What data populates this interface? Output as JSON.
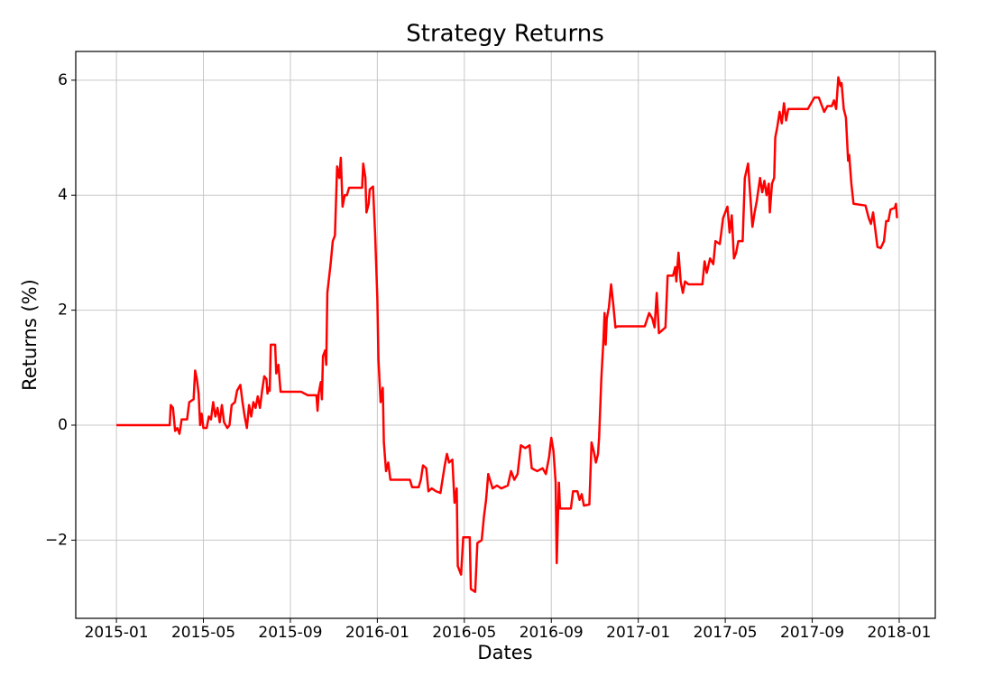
{
  "chart_data": {
    "type": "line",
    "title": "Strategy Returns",
    "x_label": "Dates",
    "y_label": "Returns (%)",
    "color": "#ff0000",
    "grid": true,
    "xlim": [
      -1.87,
      37.66
    ],
    "ylim": [
      -3.36,
      6.5
    ],
    "xticks": [
      {
        "value": 0,
        "label": "2015-01"
      },
      {
        "value": 4,
        "label": "2015-05"
      },
      {
        "value": 8,
        "label": "2015-09"
      },
      {
        "value": 12,
        "label": "2016-01"
      },
      {
        "value": 16,
        "label": "2016-05"
      },
      {
        "value": 20,
        "label": "2016-09"
      },
      {
        "value": 24,
        "label": "2017-01"
      },
      {
        "value": 28,
        "label": "2017-05"
      },
      {
        "value": 32,
        "label": "2017-09"
      },
      {
        "value": 36,
        "label": "2018-01"
      }
    ],
    "yticks": [
      {
        "value": -2,
        "label": "−2"
      },
      0,
      2,
      4,
      6
    ],
    "x": [
      0,
      2.45,
      2.5,
      2.6,
      2.7,
      2.8,
      2.9,
      3.0,
      3.25,
      3.35,
      3.55,
      3.62,
      3.7,
      3.78,
      3.85,
      3.92,
      4.0,
      4.15,
      4.25,
      4.35,
      4.45,
      4.55,
      4.65,
      4.75,
      4.85,
      4.95,
      5.1,
      5.2,
      5.3,
      5.45,
      5.55,
      5.7,
      5.8,
      5.9,
      6.0,
      6.1,
      6.2,
      6.3,
      6.4,
      6.5,
      6.6,
      6.7,
      6.8,
      6.9,
      6.95,
      7.0,
      7.05,
      7.1,
      7.3,
      7.35,
      7.45,
      7.55,
      8.5,
      8.8,
      9.2,
      9.25,
      9.3,
      9.4,
      9.45,
      9.5,
      9.6,
      9.65,
      9.7,
      9.85,
      9.95,
      10.05,
      10.15,
      10.25,
      10.32,
      10.4,
      10.5,
      10.6,
      10.7,
      11.3,
      11.35,
      11.45,
      11.5,
      11.6,
      11.65,
      11.8,
      11.9,
      12.0,
      12.05,
      12.15,
      12.25,
      12.3,
      12.4,
      12.5,
      12.6,
      13.5,
      13.6,
      13.9,
      14.0,
      14.1,
      14.25,
      14.35,
      14.5,
      14.7,
      14.9,
      15.1,
      15.2,
      15.3,
      15.45,
      15.55,
      15.65,
      15.7,
      15.85,
      15.95,
      16.25,
      16.3,
      16.5,
      16.6,
      16.8,
      16.9,
      17.0,
      17.1,
      17.3,
      17.5,
      17.7,
      18.0,
      18.15,
      18.3,
      18.45,
      18.6,
      18.8,
      19.0,
      19.1,
      19.35,
      19.6,
      19.75,
      19.9,
      20.0,
      20.1,
      20.2,
      20.25,
      20.35,
      20.4,
      20.9,
      21.0,
      21.2,
      21.3,
      21.4,
      21.5,
      21.75,
      21.85,
      21.95,
      22.05,
      22.15,
      22.2,
      22.3,
      22.4,
      22.45,
      22.5,
      22.55,
      22.65,
      22.75,
      22.85,
      22.95,
      23.05,
      24.3,
      24.5,
      24.65,
      24.75,
      24.85,
      24.95,
      25.1,
      25.25,
      25.35,
      25.6,
      25.7,
      25.75,
      25.85,
      25.95,
      26.05,
      26.15,
      26.3,
      26.95,
      27.05,
      27.15,
      27.3,
      27.45,
      27.55,
      27.75,
      27.9,
      28.1,
      28.2,
      28.3,
      28.4,
      28.5,
      28.6,
      28.8,
      28.9,
      29.05,
      29.15,
      29.25,
      29.35,
      29.45,
      29.6,
      29.7,
      29.8,
      29.9,
      30.0,
      30.05,
      30.15,
      30.25,
      30.3,
      30.4,
      30.5,
      30.6,
      30.7,
      30.8,
      30.9,
      31.8,
      31.95,
      32.1,
      32.3,
      32.45,
      32.55,
      32.7,
      32.9,
      33.0,
      33.1,
      33.2,
      33.3,
      33.35,
      33.45,
      33.55,
      33.65,
      33.7,
      33.8,
      33.9,
      34.45,
      34.6,
      34.7,
      34.8,
      34.9,
      35.0,
      35.15,
      35.3,
      35.4,
      35.5,
      35.6,
      35.8,
      35.85,
      35.9
    ],
    "values": [
      0,
      0,
      0.35,
      0.3,
      -0.1,
      -0.05,
      -0.15,
      0.1,
      0.1,
      0.4,
      0.45,
      0.95,
      0.8,
      0.55,
      0,
      0.2,
      -0.05,
      -0.05,
      0.15,
      0.1,
      0.4,
      0.15,
      0.3,
      0.05,
      0.35,
      0.05,
      -0.05,
      0,
      0.35,
      0.4,
      0.6,
      0.7,
      0.4,
      0.15,
      -0.05,
      0.35,
      0.15,
      0.4,
      0.3,
      0.5,
      0.3,
      0.6,
      0.85,
      0.8,
      0.55,
      0.65,
      0.6,
      1.4,
      1.4,
      0.9,
      1.05,
      0.58,
      0.58,
      0.52,
      0.52,
      0.25,
      0.55,
      0.75,
      0.45,
      1.2,
      1.3,
      1.05,
      2.3,
      2.8,
      3.2,
      3.3,
      4.5,
      4.3,
      4.65,
      3.8,
      4.0,
      4.0,
      4.13,
      4.13,
      4.55,
      4.3,
      3.7,
      3.85,
      4.1,
      4.15,
      3.3,
      2.2,
      1.15,
      0.4,
      0.65,
      -0.3,
      -0.8,
      -0.65,
      -0.95,
      -0.95,
      -1.08,
      -1.08,
      -0.95,
      -0.7,
      -0.75,
      -1.15,
      -1.1,
      -1.15,
      -1.18,
      -0.7,
      -0.5,
      -0.65,
      -0.6,
      -1.35,
      -1.1,
      -2.45,
      -2.6,
      -1.95,
      -1.95,
      -2.85,
      -2.9,
      -2.05,
      -2.0,
      -1.6,
      -1.3,
      -0.85,
      -1.1,
      -1.05,
      -1.1,
      -1.05,
      -0.8,
      -0.95,
      -0.85,
      -0.35,
      -0.4,
      -0.35,
      -0.75,
      -0.8,
      -0.75,
      -0.85,
      -0.55,
      -0.22,
      -0.45,
      -1.0,
      -2.4,
      -1.0,
      -1.45,
      -1.45,
      -1.15,
      -1.15,
      -1.3,
      -1.2,
      -1.4,
      -1.38,
      -0.3,
      -0.45,
      -0.65,
      -0.5,
      -0.2,
      0.8,
      1.5,
      1.95,
      1.4,
      1.85,
      2.05,
      2.45,
      2.1,
      1.7,
      1.72,
      1.72,
      1.95,
      1.85,
      1.7,
      2.3,
      1.6,
      1.65,
      1.7,
      2.6,
      2.6,
      2.75,
      2.5,
      3.0,
      2.5,
      2.3,
      2.5,
      2.45,
      2.45,
      2.85,
      2.65,
      2.9,
      2.8,
      3.2,
      3.15,
      3.6,
      3.8,
      3.35,
      3.65,
      2.9,
      3.0,
      3.2,
      3.2,
      4.3,
      4.55,
      4.0,
      3.45,
      3.7,
      3.9,
      4.3,
      4.05,
      4.25,
      4.0,
      4.2,
      3.7,
      4.2,
      4.3,
      5.0,
      5.2,
      5.45,
      5.25,
      5.6,
      5.3,
      5.5,
      5.5,
      5.6,
      5.7,
      5.7,
      5.55,
      5.45,
      5.55,
      5.55,
      5.65,
      5.5,
      6.05,
      5.9,
      5.95,
      5.5,
      5.35,
      4.6,
      4.7,
      4.2,
      3.85,
      3.82,
      3.6,
      3.5,
      3.7,
      3.4,
      3.1,
      3.08,
      3.2,
      3.55,
      3.55,
      3.75,
      3.78,
      3.85,
      3.6
    ]
  }
}
